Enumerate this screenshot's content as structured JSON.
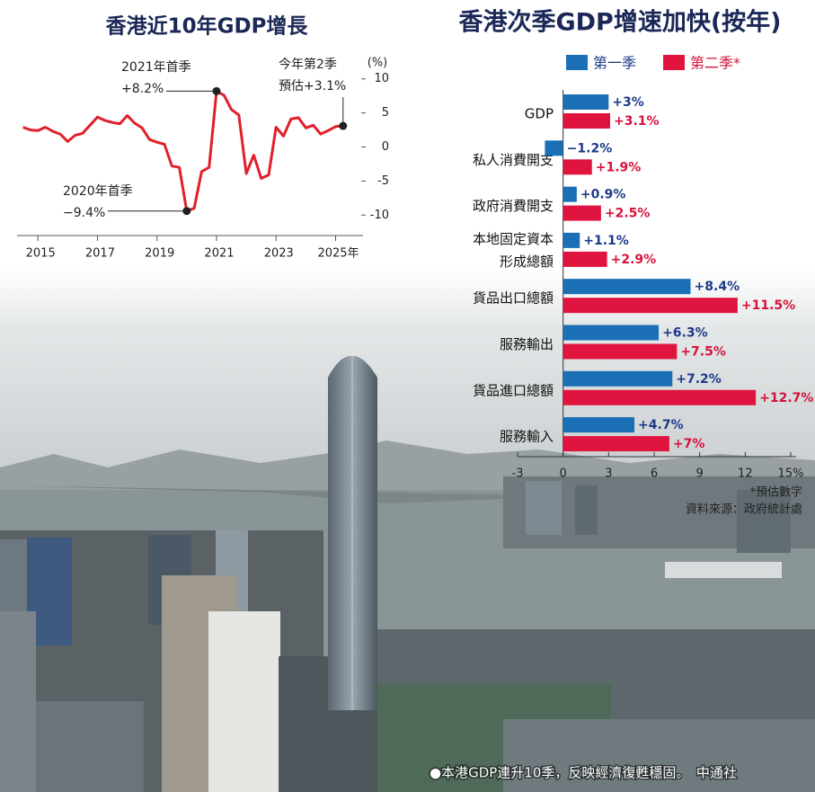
{
  "chart_data": [
    {
      "type": "line",
      "title": "香港近10年GDP增長",
      "ylabel": "(%)",
      "color": "#e0202a",
      "x": [
        2014.5,
        2014.75,
        2015,
        2015.25,
        2015.5,
        2015.75,
        2016,
        2016.25,
        2016.5,
        2016.75,
        2017,
        2017.25,
        2017.5,
        2017.75,
        2018,
        2018.25,
        2018.5,
        2018.75,
        2019,
        2019.25,
        2019.5,
        2019.75,
        2020,
        2020.25,
        2020.5,
        2020.75,
        2021,
        2021.25,
        2021.5,
        2021.75,
        2022,
        2022.25,
        2022.5,
        2022.75,
        2023,
        2023.25,
        2023.5,
        2023.75,
        2024,
        2024.25,
        2024.5,
        2024.75,
        2025,
        2025.25
      ],
      "values": [
        2.9,
        2.5,
        2.4,
        2.9,
        2.3,
        1.9,
        0.8,
        1.7,
        2.0,
        3.2,
        4.4,
        3.9,
        3.6,
        3.4,
        4.6,
        3.5,
        2.8,
        1.1,
        0.7,
        0.4,
        -2.8,
        -3.0,
        -9.4,
        -9.0,
        -3.6,
        -3.0,
        8.2,
        7.6,
        5.5,
        4.7,
        -3.9,
        -1.2,
        -4.6,
        -4.1,
        2.9,
        1.6,
        4.1,
        4.3,
        2.8,
        3.2,
        1.9,
        2.4,
        3.0,
        3.1
      ],
      "xlim": [
        2014.3,
        2025.8
      ],
      "xticks": [
        2015,
        2017,
        2019,
        2021,
        2023,
        {
          "value": 2025,
          "label": "2025年"
        }
      ],
      "ylim": [
        -13,
        13
      ],
      "yticks": [
        10,
        5,
        0,
        -5,
        -10
      ],
      "annotations": [
        [
          "2021年首季",
          "+8.2%"
        ],
        [
          "2020年首季",
          "−9.4%"
        ],
        [
          "今年第2季",
          "預估+3.1%"
        ]
      ]
    },
    {
      "type": "bar",
      "title": "香港次季GDP增速加快(按年)",
      "categories": [
        "GDP",
        "私人消費開支",
        "政府消費開支",
        "本地固定資本\n形成總額",
        "貨品出口總額",
        "服務輸出",
        "貨品進口總額",
        "服務輸入"
      ],
      "series": [
        {
          "name": "第一季",
          "color": "#1a6fb5",
          "values": [
            3,
            -1.2,
            0.9,
            1.1,
            8.4,
            6.3,
            7.2,
            4.7
          ],
          "value_labels": [
            "+3%",
            "−1.2%",
            "+0.9%",
            "+1.1%",
            "+8.4%",
            "+6.3%",
            "+7.2%",
            "+4.7%"
          ]
        },
        {
          "name": "第二季*",
          "color": "#e0153f",
          "values": [
            3.1,
            1.9,
            2.5,
            2.9,
            11.5,
            7.5,
            12.7,
            7
          ],
          "value_labels": [
            "+3.1%",
            "+1.9%",
            "+2.5%",
            "+2.9%",
            "+11.5%",
            "+7.5%",
            "+12.7%",
            "+7%"
          ]
        }
      ],
      "xlim": [
        -3,
        15
      ],
      "xticks": [
        -3,
        0,
        3,
        6,
        9,
        12,
        {
          "value": 15,
          "label": "15%"
        }
      ],
      "notes": [
        "*預估數字",
        "資料來源：政府統計處"
      ]
    }
  ],
  "photo_caption": "●本港GDP連升10季，反映經濟復甦穩固。　中通社"
}
